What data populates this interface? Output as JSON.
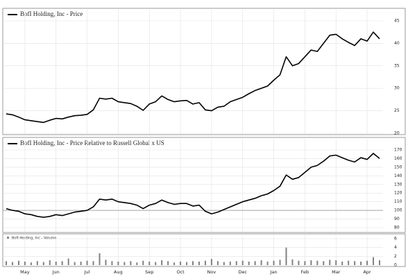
{
  "chart_data": [
    {
      "type": "line",
      "name": "BofI Holding, Inc - Price",
      "color": "#000000",
      "ylim": [
        20,
        45
      ],
      "yticks": [
        20,
        25,
        30,
        35,
        40,
        45
      ],
      "grid": true,
      "values": [
        24.3,
        24.1,
        23.6,
        23.0,
        22.8,
        22.6,
        22.4,
        22.9,
        23.3,
        23.2,
        23.6,
        23.9,
        24.0,
        24.2,
        25.2,
        27.8,
        27.6,
        27.8,
        27.0,
        26.8,
        26.6,
        26.0,
        25.1,
        26.5,
        27.0,
        28.3,
        27.5,
        27.0,
        27.2,
        27.3,
        26.5,
        26.8,
        25.2,
        25.0,
        25.8,
        26.0,
        27.0,
        27.5,
        28.0,
        28.8,
        29.5,
        30.0,
        30.5,
        31.8,
        33.0,
        37.0,
        35.0,
        35.5,
        37.0,
        38.5,
        38.2,
        40.0,
        41.8,
        42.0,
        41.0,
        40.2,
        39.5,
        41.0,
        40.5,
        42.5,
        41.0
      ]
    },
    {
      "type": "line",
      "name": "BofI Holding, Inc - Price Relative to Russell Global x US",
      "color": "#000000",
      "ylim": [
        80,
        170
      ],
      "yticks": [
        80,
        90,
        100,
        110,
        120,
        130,
        140,
        150,
        160,
        170
      ],
      "grid": true,
      "hline": 100,
      "values": [
        102,
        100,
        99,
        96,
        95,
        93,
        92,
        93,
        95,
        94,
        96,
        98,
        99,
        100,
        104,
        113,
        112,
        113,
        110,
        109,
        108,
        106,
        102,
        106,
        108,
        112,
        109,
        107,
        108,
        108,
        105,
        106,
        99,
        96,
        98,
        101,
        104,
        107,
        110,
        112,
        114,
        117,
        119,
        123,
        128,
        141,
        136,
        138,
        144,
        150,
        152,
        157,
        163,
        164,
        161,
        158,
        156,
        161,
        159,
        166,
        160
      ]
    },
    {
      "type": "bar",
      "name": "BofI Holding, Inc - Volume",
      "color": "#808080",
      "ylim": [
        0,
        6
      ],
      "yticks": [
        0,
        2,
        4,
        6
      ],
      "grid": true,
      "categories": [
        null,
        null,
        null,
        "May",
        null,
        null,
        null,
        null,
        "Jun",
        null,
        null,
        null,
        null,
        "Jul",
        null,
        null,
        null,
        null,
        "Aug",
        null,
        null,
        null,
        null,
        "Sep",
        null,
        null,
        null,
        null,
        "Oct",
        null,
        null,
        null,
        null,
        "Nov",
        null,
        null,
        null,
        null,
        "Dec",
        null,
        null,
        null,
        null,
        "Jan",
        null,
        null,
        null,
        null,
        "Feb",
        null,
        null,
        null,
        null,
        "Mar",
        null,
        null,
        null,
        null,
        "Apr",
        null,
        null
      ],
      "values": [
        0.9,
        0.7,
        1.0,
        0.8,
        0.6,
        0.9,
        0.7,
        1.1,
        0.8,
        0.9,
        1.5,
        0.7,
        0.8,
        1.0,
        0.9,
        2.7,
        1.2,
        0.9,
        0.8,
        0.7,
        0.9,
        0.6,
        1.0,
        0.8,
        0.7,
        1.1,
        0.9,
        0.6,
        0.8,
        0.7,
        0.9,
        0.8,
        1.0,
        1.4,
        0.9,
        0.7,
        0.8,
        0.9,
        1.0,
        0.8,
        0.9,
        1.1,
        0.8,
        1.0,
        1.2,
        4.0,
        1.3,
        1.0,
        0.9,
        1.1,
        1.0,
        0.9,
        1.2,
        1.1,
        0.8,
        1.0,
        0.9,
        0.8,
        1.0,
        1.8,
        1.1
      ]
    }
  ]
}
